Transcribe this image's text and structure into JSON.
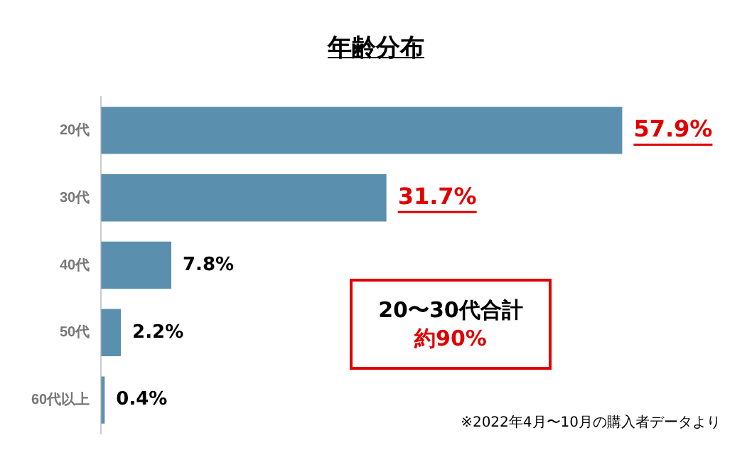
{
  "chart_data": {
    "type": "bar",
    "orientation": "horizontal",
    "title": "年齢分布",
    "categories": [
      "20代",
      "30代",
      "40代",
      "50代",
      "60代以上"
    ],
    "values": [
      57.9,
      31.7,
      7.8,
      2.2,
      0.4
    ],
    "color": "#5b8fae",
    "value_labels": [
      "57.9%",
      "31.7%",
      "7.8%",
      "2.2%",
      "0.4%"
    ],
    "legend": false,
    "grid": false,
    "annotations": [
      "20〜30代合計",
      "約90%",
      "※2022年4月〜10月の購入者データより"
    ]
  }
}
